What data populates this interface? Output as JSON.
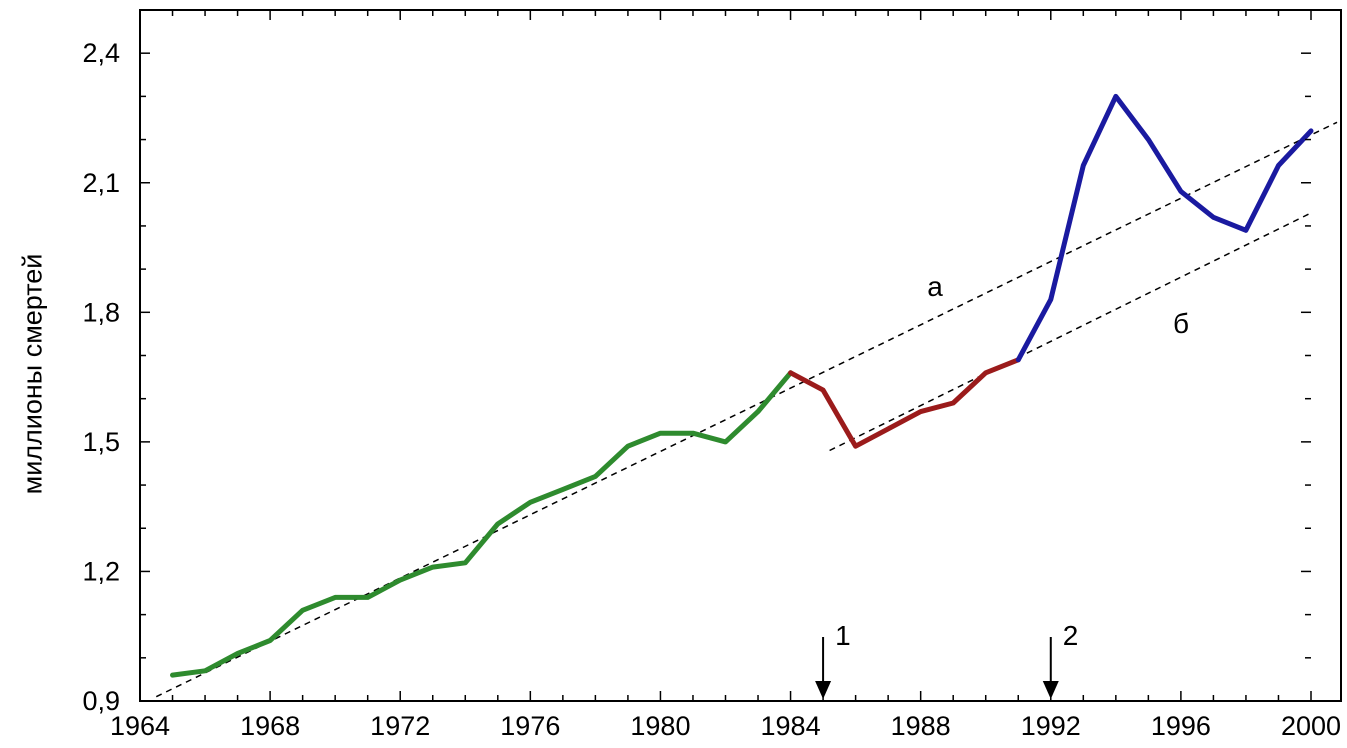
{
  "chart_data": {
    "type": "line",
    "xlabel": "",
    "ylabel": "миллионы смертей",
    "xlim": [
      1964,
      2000
    ],
    "ylim": [
      0.9,
      2.5
    ],
    "x_ticks": [
      "1964",
      "1968",
      "1972",
      "1976",
      "1980",
      "1984",
      "1988",
      "1992",
      "1996",
      "2000"
    ],
    "y_ticks": [
      "0,9",
      "1,2",
      "1,5",
      "1,8",
      "2,1",
      "2,4"
    ],
    "grid": false,
    "series": [
      {
        "color": "#2e8b2e",
        "x": [
          1965,
          1966,
          1967,
          1968,
          1969,
          1970,
          1971,
          1972,
          1973,
          1974,
          1975,
          1976,
          1977,
          1978,
          1979,
          1980,
          1981,
          1982,
          1983,
          1984
        ],
        "y": [
          0.96,
          0.97,
          1.01,
          1.04,
          1.11,
          1.14,
          1.14,
          1.18,
          1.21,
          1.22,
          1.31,
          1.36,
          1.39,
          1.42,
          1.49,
          1.52,
          1.52,
          1.5,
          1.57,
          1.66
        ]
      },
      {
        "color": "#9b1b1b",
        "x": [
          1984,
          1985,
          1986,
          1987,
          1988,
          1989,
          1990,
          1991
        ],
        "y": [
          1.66,
          1.62,
          1.49,
          1.53,
          1.57,
          1.59,
          1.66,
          1.69
        ]
      },
      {
        "color": "#1a1aa0",
        "x": [
          1991,
          1992,
          1993,
          1994,
          1995,
          1996,
          1997,
          1998,
          1999,
          2000
        ],
        "y": [
          1.69,
          1.83,
          2.14,
          2.3,
          2.2,
          2.08,
          2.02,
          1.99,
          2.14,
          2.22
        ]
      }
    ],
    "trend_lines": [
      {
        "label": "а",
        "x": [
          1964.5,
          2000.8
        ],
        "y": [
          0.91,
          2.24
        ]
      },
      {
        "label": "б",
        "x": [
          1985.2,
          2000
        ],
        "y": [
          1.48,
          2.03
        ]
      }
    ],
    "markers": [
      {
        "label": "1",
        "x": 1985
      },
      {
        "label": "2",
        "x": 1992
      }
    ]
  }
}
